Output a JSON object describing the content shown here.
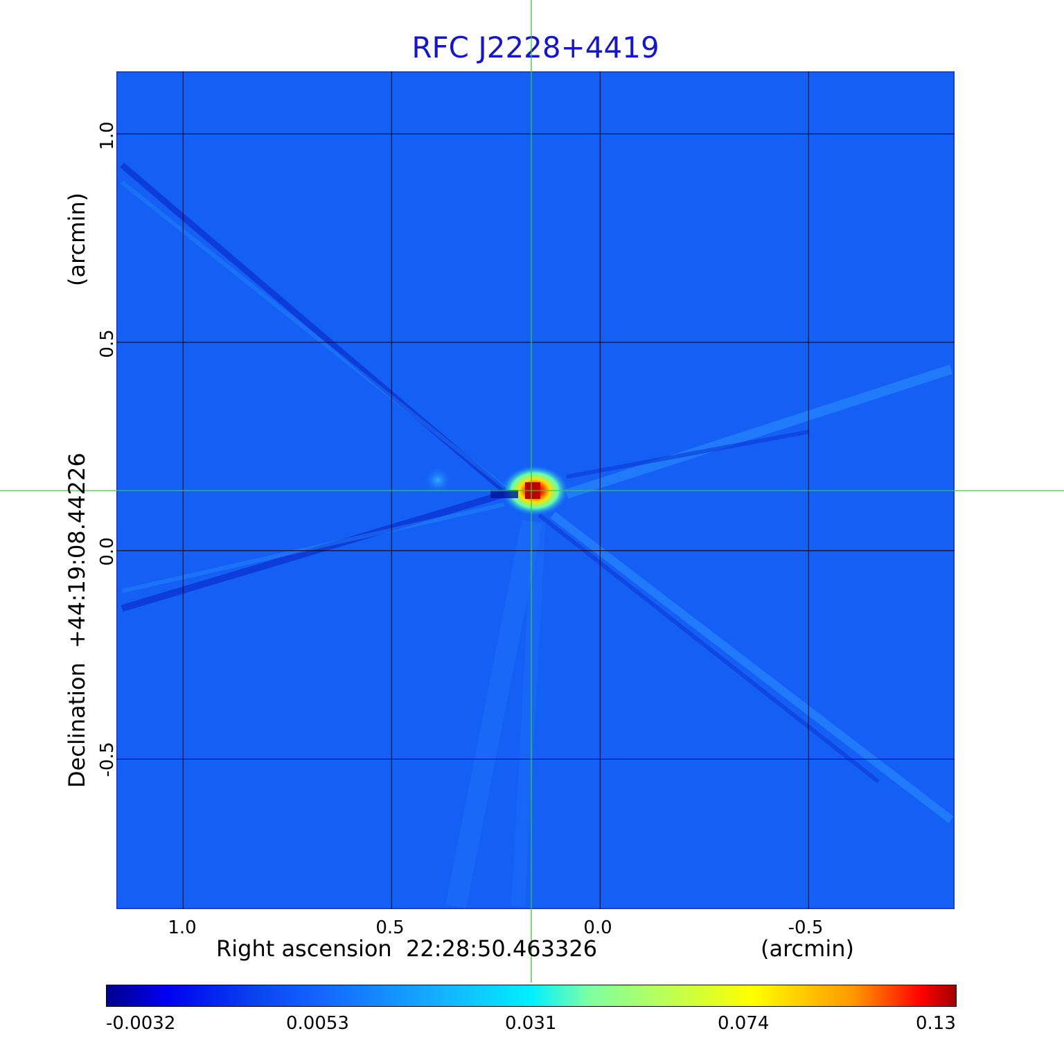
{
  "title": "RFC J2228+4419",
  "x_axis": {
    "label": "Right ascension  22:28:50.463326",
    "unit": "(arcmin)",
    "ticks": [
      "1.0",
      "0.5",
      "0.0",
      "-0.5"
    ],
    "tick_values": [
      1.0,
      0.5,
      0.0,
      -0.5
    ],
    "range": [
      1.16,
      -0.85
    ]
  },
  "y_axis": {
    "label": "Declination  +44:19:08.44226",
    "unit": "(arcmin)",
    "ticks": [
      "1.0",
      "0.5",
      "0.0",
      "-0.5"
    ],
    "tick_values": [
      1.0,
      0.5,
      0.0,
      -0.5
    ],
    "range": [
      -0.86,
      1.15
    ]
  },
  "crosshair": {
    "ra_arcmin": 0.16,
    "dec_arcmin": 0.145,
    "color": "#30d030"
  },
  "colorbar": {
    "ticks": [
      "-0.0032",
      "0.0053",
      "0.031",
      "0.074",
      "0.13"
    ],
    "colors": [
      "#00008c",
      "#0000f0",
      "#1464ff",
      "#00f0ff",
      "#ffff00",
      "#ff0000",
      "#a00000"
    ]
  },
  "image": {
    "background_color": "#1460f5",
    "source_peak_color": "#c80000",
    "stripe_dark_color": "#0a28c8",
    "stripe_light_color": "#2894ff"
  }
}
